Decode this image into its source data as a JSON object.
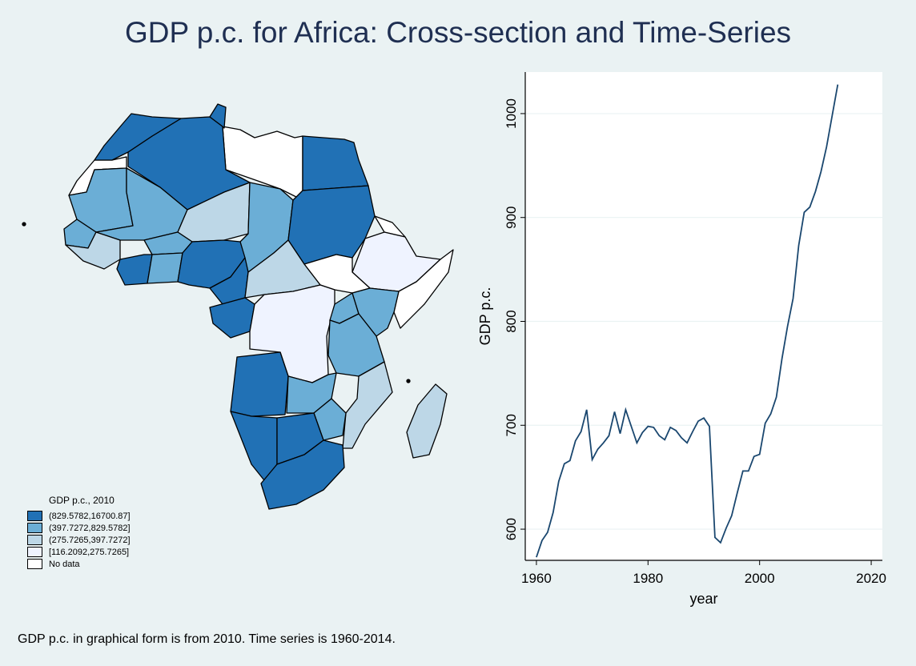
{
  "title": "GDP p.c. for Africa: Cross-section and Time-Series",
  "note": "GDP p.c. in graphical form is from 2010.  Time series is 1960-2014.",
  "colors": {
    "background": "#eaf2f3",
    "plot_background": "#ffffff",
    "line": "#1a476f",
    "grid": "#eaf2f3",
    "class_1": "#2171b5",
    "class_2": "#6baed6",
    "class_3": "#bdd7e7",
    "class_4": "#eff3ff",
    "no_data": "#ffffff"
  },
  "legend": {
    "title": "GDP p.c., 2010",
    "items": [
      {
        "label": "(829.5782,16700.87]",
        "color": "#2171b5"
      },
      {
        "label": "(397.7272,829.5782]",
        "color": "#6baed6"
      },
      {
        "label": "(275.7265,397.7272]",
        "color": "#bdd7e7"
      },
      {
        "label": "[116.2092,275.7265]",
        "color": "#eff3ff"
      },
      {
        "label": "No data",
        "color": "#ffffff"
      }
    ]
  },
  "chart_data": [
    {
      "type": "map",
      "title": "GDP p.c., 2010",
      "legend_position": "bottom-left",
      "classes": [
        "(829.5782,16700.87]",
        "(397.7272,829.5782]",
        "(275.7265,397.7272]",
        "[116.2092,275.7265]",
        "No data"
      ]
    },
    {
      "type": "line",
      "xlabel": "year",
      "ylabel": "GDP p.c.",
      "xlim": [
        1958,
        2022
      ],
      "ylim": [
        570,
        1040
      ],
      "xticks": [
        1960,
        1980,
        2000,
        2020
      ],
      "yticks": [
        600,
        700,
        800,
        900,
        1000
      ],
      "grid": true,
      "x": [
        1960,
        1961,
        1962,
        1963,
        1964,
        1965,
        1966,
        1967,
        1968,
        1969,
        1970,
        1971,
        1972,
        1973,
        1974,
        1975,
        1976,
        1977,
        1978,
        1979,
        1980,
        1981,
        1982,
        1983,
        1984,
        1985,
        1986,
        1987,
        1988,
        1989,
        1990,
        1991,
        1992,
        1993,
        1994,
        1995,
        1996,
        1997,
        1998,
        1999,
        2000,
        2001,
        2002,
        2003,
        2004,
        2005,
        2006,
        2007,
        2008,
        2009,
        2010,
        2011,
        2012,
        2013,
        2014
      ],
      "y": [
        573,
        589,
        597,
        616,
        646,
        663,
        666,
        685,
        694,
        715,
        667,
        677,
        683,
        690,
        713,
        692,
        715,
        699,
        683,
        693,
        699,
        698,
        690,
        686,
        698,
        695,
        688,
        683,
        694,
        704,
        707,
        699,
        592,
        587,
        601,
        613,
        635,
        656,
        656,
        670,
        672,
        702,
        711,
        727,
        764,
        795,
        822,
        873,
        905,
        910,
        925,
        944,
        968,
        998,
        1028
      ]
    }
  ]
}
